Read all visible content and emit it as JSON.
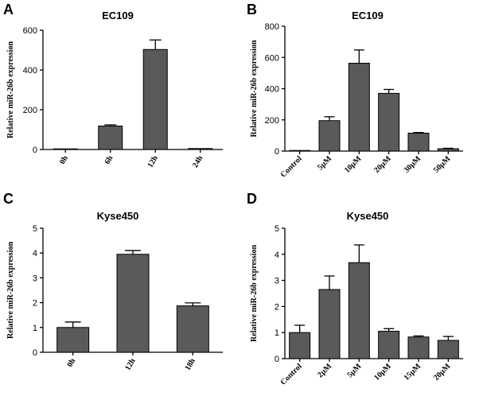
{
  "chart_data": [
    {
      "type": "bar",
      "panel": "A",
      "title": "EC109",
      "ylabel": "Relative miR-26b expression",
      "categories": [
        "0h",
        "6h",
        "12h",
        "24h"
      ],
      "values": [
        1,
        118,
        503,
        5
      ],
      "errors": [
        0,
        6,
        48,
        0
      ],
      "ylim": [
        0,
        600
      ],
      "yticks": [
        0,
        200,
        400,
        600
      ],
      "xtick_rotation": -60
    },
    {
      "type": "bar",
      "panel": "B",
      "title": "EC109",
      "ylabel": "Relative miR-26b expression",
      "categories": [
        "Control",
        "5μM",
        "10μM",
        "20μM",
        "30μM",
        "50μM"
      ],
      "values": [
        1,
        195,
        563,
        370,
        115,
        15
      ],
      "errors": [
        0,
        25,
        85,
        25,
        4,
        3
      ],
      "ylim": [
        0,
        800
      ],
      "yticks": [
        0,
        200,
        400,
        600,
        800
      ],
      "xtick_rotation": -45
    },
    {
      "type": "bar",
      "panel": "C",
      "title": "Kyse450",
      "ylabel": "Relative miR-26b expression",
      "categories": [
        "0h",
        "12h",
        "18h"
      ],
      "values": [
        1.0,
        3.95,
        1.87
      ],
      "errors": [
        0.22,
        0.15,
        0.12
      ],
      "ylim": [
        0,
        5
      ],
      "yticks": [
        0,
        1,
        2,
        3,
        4,
        5
      ],
      "xtick_rotation": -60
    },
    {
      "type": "bar",
      "panel": "D",
      "title": "Kyse450",
      "ylabel": "Relative miR-26b expression",
      "categories": [
        "Control",
        "2μM",
        "5μM",
        "10μM",
        "15μM",
        "20μM"
      ],
      "values": [
        1.0,
        2.65,
        3.68,
        1.05,
        0.83,
        0.7
      ],
      "errors": [
        0.28,
        0.52,
        0.68,
        0.1,
        0.04,
        0.15
      ],
      "ylim": [
        0,
        5
      ],
      "yticks": [
        0,
        1,
        2,
        3,
        4,
        5
      ],
      "xtick_rotation": -45
    }
  ]
}
